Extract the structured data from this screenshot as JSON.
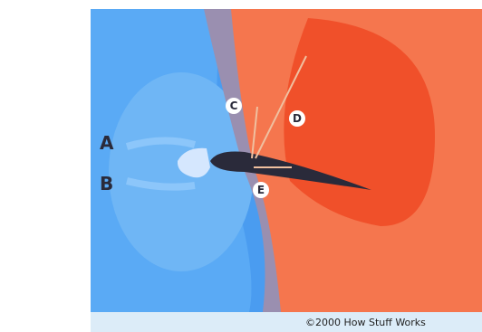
{
  "labels": {
    "a": "A",
    "b": "B",
    "c": "C",
    "d": "D",
    "e": "E"
  },
  "caption": "©2000 How Stuff Works"
}
